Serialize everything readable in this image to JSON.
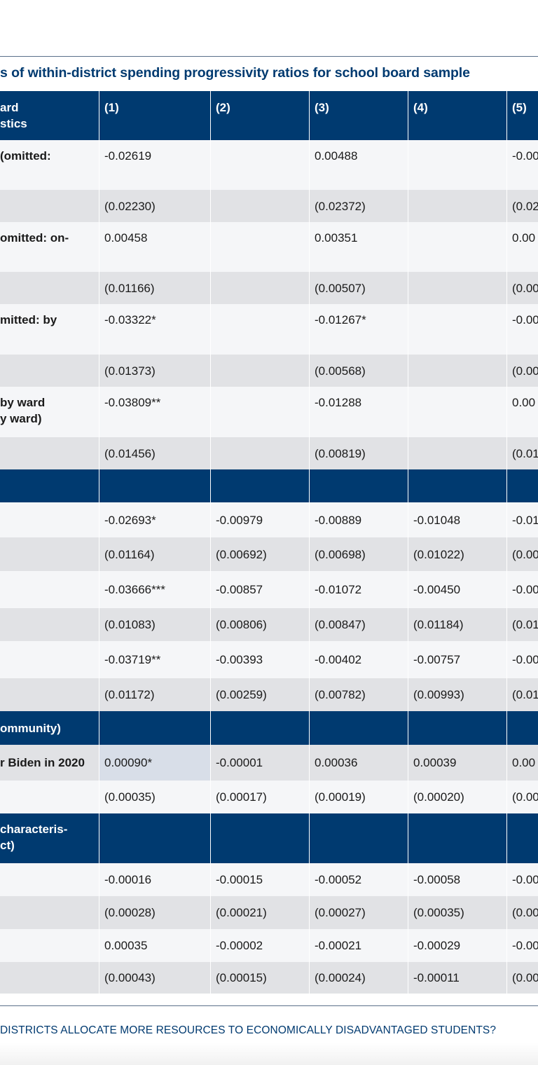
{
  "title": "s of within-district spending progressivity ratios for school board sample",
  "footer": "DISTRICTS ALLOCATE MORE RESOURCES TO ECONOMICALLY DISADVANTAGED STUDENTS?",
  "header": {
    "label": [
      "ard",
      "stics"
    ],
    "cols": [
      "(1)",
      "(2)",
      "(3)",
      "(4)",
      "(5)"
    ]
  },
  "rows": [
    {
      "style": "hdr",
      "h": 70,
      "label": [],
      "cells": [
        "",
        "",
        "",
        "",
        ""
      ]
    },
    {
      "style": "w",
      "h": 71,
      "label": [
        "(omitted:"
      ],
      "cells": [
        "-0.02619",
        "",
        "0.00488",
        "",
        "-0.00"
      ]
    },
    {
      "style": "g",
      "h": 46,
      "label": [],
      "cells": [
        "(0.02230)",
        "",
        "(0.02372)",
        "",
        "(0.02"
      ]
    },
    {
      "style": "w",
      "h": 71,
      "label": [
        "omitted: on-"
      ],
      "cells": [
        "0.00458",
        "",
        "0.00351",
        "",
        "0.00"
      ]
    },
    {
      "style": "g",
      "h": 46,
      "label": [],
      "cells": [
        "(0.01166)",
        "",
        "(0.00507)",
        "",
        "(0.00"
      ]
    },
    {
      "style": "w",
      "h": 72,
      "label": [
        "mitted: by"
      ],
      "cells": [
        "-0.03322*",
        "",
        "-0.01267*",
        "",
        "-0.00"
      ]
    },
    {
      "style": "g",
      "h": 46,
      "label": [],
      "cells": [
        "(0.01373)",
        "",
        "(0.00568)",
        "",
        "(0.00"
      ]
    },
    {
      "style": "w",
      "h": 72,
      "label": [
        "by ward",
        "y ward)"
      ],
      "cells": [
        "-0.03809**",
        "",
        "-0.01288",
        "",
        "0.00"
      ]
    },
    {
      "style": "g",
      "h": 46,
      "label": [],
      "cells": [
        "(0.01456)",
        "",
        "(0.00819)",
        "",
        "(0.01"
      ]
    },
    {
      "style": "hdr",
      "h": 47,
      "label": [],
      "cells": [
        "",
        "",
        "",
        "",
        ""
      ]
    },
    {
      "style": "w",
      "h": 50,
      "label": [],
      "cells": [
        "-0.02693*",
        "-0.00979",
        "-0.00889",
        "-0.01048",
        "-0.01"
      ]
    },
    {
      "style": "g",
      "h": 48,
      "label": [],
      "cells": [
        "(0.01164)",
        "(0.00692)",
        "(0.00698)",
        "(0.01022)",
        "(0.00"
      ]
    },
    {
      "style": "w",
      "h": 53,
      "label": [],
      "cells": [
        "-0.03666***",
        "-0.00857",
        "-0.01072",
        "-0.00450",
        "-0.00"
      ]
    },
    {
      "style": "g",
      "h": 47,
      "label": [],
      "cells": [
        "(0.01083)",
        "(0.00806)",
        "(0.00847)",
        "(0.01184)",
        "(0.01"
      ]
    },
    {
      "style": "w",
      "h": 53,
      "label": [],
      "cells": [
        "-0.03719**",
        "-0.00393",
        "-0.00402",
        "-0.00757",
        "-0.00"
      ]
    },
    {
      "style": "g",
      "h": 47,
      "label": [],
      "cells": [
        "(0.01172)",
        "(0.00259)",
        "(0.00782)",
        "(0.00993)",
        "(0.01"
      ]
    },
    {
      "style": "hdr",
      "h": 48,
      "label": [
        "ommunity)"
      ],
      "cells": [
        "",
        "",
        "",
        "",
        ""
      ]
    },
    {
      "style": "g",
      "h": 51,
      "label": [
        "r Biden in 2020"
      ],
      "cells": [
        "0.00090*",
        "-0.00001",
        "0.00036",
        "0.00039",
        "0.00"
      ],
      "hl": true
    },
    {
      "style": "w",
      "h": 47,
      "label": [],
      "cells": [
        "(0.00035)",
        "(0.00017)",
        "(0.00019)",
        "(0.00020)",
        "(0.00"
      ]
    },
    {
      "style": "hdr",
      "h": 71,
      "label": [
        "characteris-",
        "ct)"
      ],
      "cells": [
        "",
        "",
        "",
        "",
        ""
      ]
    },
    {
      "style": "w",
      "h": 47,
      "label": [],
      "cells": [
        "-0.00016",
        "-0.00015",
        "-0.00052",
        "-0.00058",
        "-0.00"
      ]
    },
    {
      "style": "g",
      "h": 47,
      "label": [],
      "cells": [
        "(0.00028)",
        " (0.00021)",
        " (0.00027)",
        "(0.00035)",
        "(0.00"
      ]
    },
    {
      "style": "w",
      "h": 47,
      "label": [],
      "cells": [
        "0.00035",
        "-0.00002",
        "-0.00021",
        "-0.00029",
        "-0.00"
      ]
    },
    {
      "style": "g",
      "h": 45,
      "label": [],
      "cells": [
        "(0.00043)",
        "(0.00015)",
        "(0.00024)",
        "-0.00011",
        "(0.00"
      ]
    }
  ]
}
